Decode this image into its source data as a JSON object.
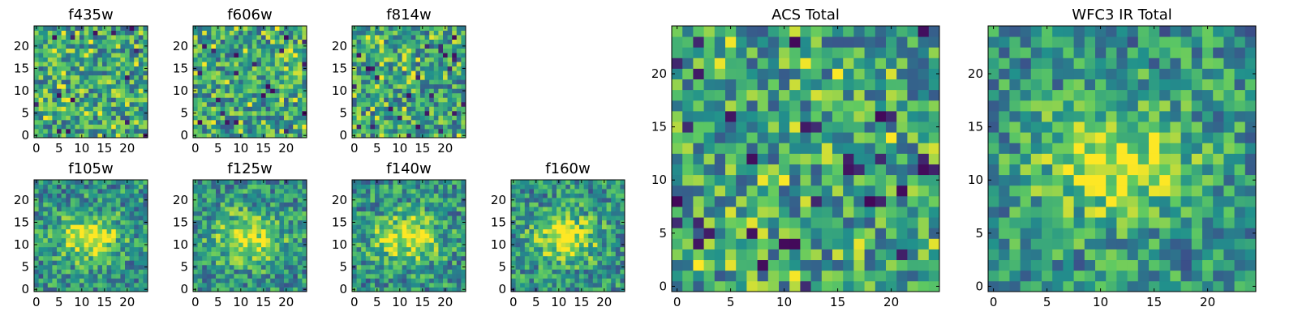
{
  "chart_data": [
    {
      "type": "heatmap",
      "title": "f435w",
      "x_ticks": [
        0,
        5,
        10,
        15,
        20
      ],
      "y_ticks": [
        0,
        5,
        10,
        15,
        20
      ],
      "grid_size": 25,
      "pattern": "noise"
    },
    {
      "type": "heatmap",
      "title": "f606w",
      "x_ticks": [
        0,
        5,
        10,
        15,
        20
      ],
      "y_ticks": [
        0,
        5,
        10,
        15,
        20
      ],
      "grid_size": 25,
      "pattern": "noise"
    },
    {
      "type": "heatmap",
      "title": "f814w",
      "x_ticks": [
        0,
        5,
        10,
        15,
        20
      ],
      "y_ticks": [
        0,
        5,
        10,
        15,
        20
      ],
      "grid_size": 25,
      "pattern": "noise"
    },
    {
      "type": "heatmap",
      "title": "f105w",
      "x_ticks": [
        0,
        5,
        10,
        15,
        20
      ],
      "y_ticks": [
        0,
        5,
        10,
        15,
        20
      ],
      "grid_size": 25,
      "pattern": "source"
    },
    {
      "type": "heatmap",
      "title": "f125w",
      "x_ticks": [
        0,
        5,
        10,
        15,
        20
      ],
      "y_ticks": [
        0,
        5,
        10,
        15,
        20
      ],
      "grid_size": 25,
      "pattern": "source"
    },
    {
      "type": "heatmap",
      "title": "f140w",
      "x_ticks": [
        0,
        5,
        10,
        15,
        20
      ],
      "y_ticks": [
        0,
        5,
        10,
        15,
        20
      ],
      "grid_size": 25,
      "pattern": "source"
    },
    {
      "type": "heatmap",
      "title": "f160w",
      "x_ticks": [
        0,
        5,
        10,
        15,
        20
      ],
      "y_ticks": [
        0,
        5,
        10,
        15,
        20
      ],
      "grid_size": 25,
      "pattern": "source"
    },
    {
      "type": "heatmap",
      "title": "ACS Total",
      "x_ticks": [
        0,
        5,
        10,
        15,
        20
      ],
      "y_ticks": [
        0,
        5,
        10,
        15,
        20
      ],
      "grid_size": 25,
      "pattern": "noise"
    },
    {
      "type": "heatmap",
      "title": "WFC3 IR Total",
      "x_ticks": [
        0,
        5,
        10,
        15,
        20
      ],
      "y_ticks": [
        0,
        5,
        10,
        15,
        20
      ],
      "grid_size": 25,
      "pattern": "source"
    }
  ],
  "colormap": [
    "#440154",
    "#3b528b",
    "#21918c",
    "#5ec962",
    "#fde725"
  ]
}
